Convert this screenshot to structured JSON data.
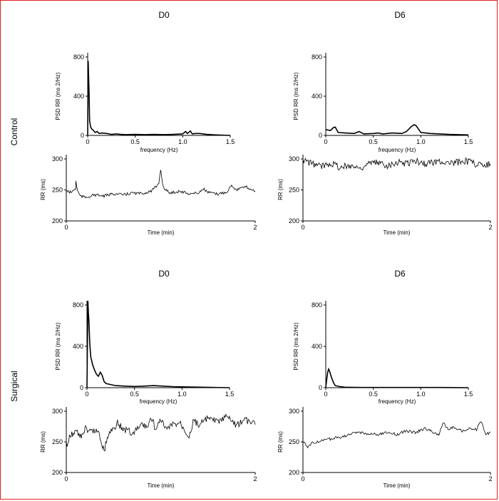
{
  "groups": [
    {
      "label": "Control",
      "columns": [
        "D0",
        "D6"
      ]
    },
    {
      "label": "Surgical",
      "columns": [
        "D0",
        "D6"
      ]
    }
  ],
  "chart_data": [
    {
      "id": "control-d0-psd",
      "type": "line",
      "xlabel": "frequency (Hz)",
      "ylabel": "PSD RR (ms 2/Hz)",
      "xlim": [
        0,
        1.5
      ],
      "ylim": [
        0,
        800
      ],
      "xticks": [
        "0",
        "0.5",
        "1.0",
        "1.5"
      ],
      "yticks": [
        "0",
        "400",
        "800"
      ],
      "x": [
        0,
        0.005,
        0.01,
        0.015,
        0.02,
        0.03,
        0.04,
        0.06,
        0.08,
        0.1,
        0.12,
        0.15,
        0.2,
        0.25,
        0.3,
        0.35,
        0.4,
        0.5,
        0.6,
        0.7,
        0.8,
        0.9,
        1.0,
        1.03,
        1.05,
        1.08,
        1.1,
        1.13,
        1.18,
        1.25,
        1.35,
        1.5
      ],
      "y": [
        0,
        760,
        600,
        420,
        150,
        90,
        70,
        50,
        30,
        40,
        20,
        25,
        20,
        10,
        15,
        10,
        8,
        10,
        8,
        10,
        8,
        10,
        15,
        40,
        20,
        45,
        15,
        20,
        20,
        10,
        5,
        0
      ]
    },
    {
      "id": "control-d0-rr",
      "type": "line",
      "xlabel": "Time (min)",
      "ylabel": "RR (ms)",
      "xlim": [
        0,
        2
      ],
      "ylim": [
        200,
        300
      ],
      "xticks": [
        "0",
        "2"
      ],
      "yticks": [
        "200",
        "250",
        "300"
      ],
      "x": [
        0,
        0.05,
        0.1,
        0.1,
        0.12,
        0.15,
        0.2,
        0.3,
        0.4,
        0.5,
        0.6,
        0.7,
        0.8,
        0.9,
        0.95,
        0.98,
        1.0,
        1.02,
        1.05,
        1.1,
        1.2,
        1.3,
        1.4,
        1.45,
        1.5,
        1.6,
        1.7,
        1.75,
        1.8,
        1.9,
        2.0
      ],
      "y": [
        248,
        246,
        252,
        265,
        248,
        240,
        238,
        242,
        240,
        244,
        242,
        245,
        244,
        248,
        255,
        262,
        284,
        258,
        250,
        245,
        248,
        244,
        245,
        252,
        246,
        243,
        247,
        258,
        250,
        255,
        248
      ]
    },
    {
      "id": "control-d6-psd",
      "type": "line",
      "xlabel": "frequency (Hz)",
      "ylabel": "PSD RR (ms 2/Hz)",
      "xlim": [
        0,
        1.5
      ],
      "ylim": [
        0,
        800
      ],
      "xticks": [
        "0",
        "0.5",
        "1.0",
        "1.5"
      ],
      "yticks": [
        "0",
        "400",
        "800"
      ],
      "x": [
        0,
        0.05,
        0.08,
        0.1,
        0.13,
        0.2,
        0.3,
        0.35,
        0.4,
        0.5,
        0.55,
        0.6,
        0.7,
        0.8,
        0.85,
        0.9,
        0.93,
        0.95,
        1.0,
        1.05,
        1.1,
        1.2,
        1.3,
        1.4,
        1.5
      ],
      "y": [
        60,
        50,
        80,
        85,
        30,
        25,
        20,
        40,
        15,
        20,
        25,
        15,
        25,
        20,
        40,
        90,
        110,
        100,
        30,
        25,
        20,
        15,
        10,
        8,
        5
      ]
    },
    {
      "id": "control-d6-rr",
      "type": "line",
      "xlabel": "Time (min)",
      "ylabel": "RR (ms)",
      "xlim": [
        0,
        2
      ],
      "ylim": [
        200,
        300
      ],
      "xticks": [
        "0",
        "2"
      ],
      "yticks": [
        "200",
        "250",
        "300"
      ],
      "x": [
        0,
        0.1,
        0.2,
        0.3,
        0.4,
        0.5,
        0.6,
        0.7,
        0.8,
        0.9,
        1.0,
        1.1,
        1.2,
        1.3,
        1.4,
        1.5,
        1.6,
        1.7,
        1.8,
        1.9,
        2.0
      ],
      "y": [
        298,
        292,
        288,
        294,
        286,
        290,
        285,
        292,
        294,
        290,
        295,
        293,
        297,
        292,
        295,
        296,
        292,
        298,
        294,
        290,
        292
      ]
    },
    {
      "id": "surgical-d0-psd",
      "type": "line",
      "xlabel": "frequency (Hz)",
      "ylabel": "PSD RR (ms 2/Hz)",
      "xlim": [
        0,
        1.5
      ],
      "ylim": [
        0,
        800
      ],
      "xticks": [
        "0",
        "0.5",
        "1.0",
        "1.5"
      ],
      "yticks": [
        "0",
        "400",
        "800"
      ],
      "x": [
        0,
        0.01,
        0.015,
        0.02,
        0.03,
        0.04,
        0.06,
        0.08,
        0.1,
        0.12,
        0.14,
        0.16,
        0.18,
        0.2,
        0.25,
        0.3,
        0.4,
        0.5,
        0.6,
        0.7,
        0.8,
        0.9,
        1.0,
        1.2,
        1.5
      ],
      "y": [
        0,
        840,
        720,
        650,
        420,
        300,
        220,
        170,
        130,
        110,
        150,
        120,
        60,
        40,
        30,
        20,
        15,
        12,
        15,
        20,
        15,
        10,
        8,
        5,
        0
      ]
    },
    {
      "id": "surgical-d0-rr",
      "type": "line",
      "xlabel": "Time (min)",
      "ylabel": "RR (ms)",
      "xlim": [
        0,
        2
      ],
      "ylim": [
        200,
        300
      ],
      "xticks": [
        "0",
        "2"
      ],
      "yticks": [
        "200",
        "250",
        "300"
      ],
      "x": [
        0,
        0.05,
        0.1,
        0.15,
        0.2,
        0.25,
        0.3,
        0.35,
        0.4,
        0.45,
        0.5,
        0.55,
        0.6,
        0.65,
        0.7,
        0.8,
        0.85,
        0.9,
        0.95,
        1.0,
        1.05,
        1.1,
        1.2,
        1.3,
        1.35,
        1.4,
        1.5,
        1.6,
        1.7,
        1.8,
        1.9,
        2.0
      ],
      "y": [
        245,
        262,
        268,
        258,
        272,
        265,
        270,
        262,
        236,
        265,
        272,
        282,
        268,
        270,
        262,
        280,
        272,
        290,
        268,
        288,
        270,
        275,
        282,
        260,
        286,
        278,
        288,
        282,
        290,
        278,
        285,
        278
      ]
    },
    {
      "id": "surgical-d6-psd",
      "type": "line",
      "xlabel": "frequency (Hz)",
      "ylabel": "PSD RR (ms 2/Hz)",
      "xlim": [
        0,
        1.5
      ],
      "ylim": [
        0,
        800
      ],
      "xticks": [
        "0",
        "0.5",
        "1.0",
        "1.5"
      ],
      "yticks": [
        "0",
        "400",
        "800"
      ],
      "x": [
        0,
        0.01,
        0.02,
        0.03,
        0.04,
        0.06,
        0.08,
        0.1,
        0.15,
        0.2,
        0.3,
        0.5,
        0.8,
        1.2,
        1.5
      ],
      "y": [
        0,
        80,
        150,
        180,
        160,
        100,
        50,
        20,
        10,
        5,
        3,
        2,
        2,
        2,
        0
      ]
    },
    {
      "id": "surgical-d6-rr",
      "type": "line",
      "xlabel": "Time (min)",
      "ylabel": "RR (ms)",
      "xlim": [
        0,
        2
      ],
      "ylim": [
        200,
        300
      ],
      "xticks": [
        "0",
        "2"
      ],
      "yticks": [
        "200",
        "250",
        "300"
      ],
      "x": [
        0,
        0.05,
        0.1,
        0.2,
        0.3,
        0.4,
        0.5,
        0.6,
        0.7,
        0.8,
        0.9,
        1.0,
        1.1,
        1.2,
        1.3,
        1.4,
        1.45,
        1.5,
        1.55,
        1.6,
        1.7,
        1.8,
        1.85,
        1.9,
        1.95,
        2.0
      ],
      "y": [
        250,
        242,
        248,
        252,
        255,
        258,
        262,
        266,
        263,
        262,
        265,
        262,
        268,
        265,
        272,
        265,
        262,
        282,
        270,
        275,
        268,
        272,
        270,
        284,
        262,
        266
      ]
    }
  ]
}
